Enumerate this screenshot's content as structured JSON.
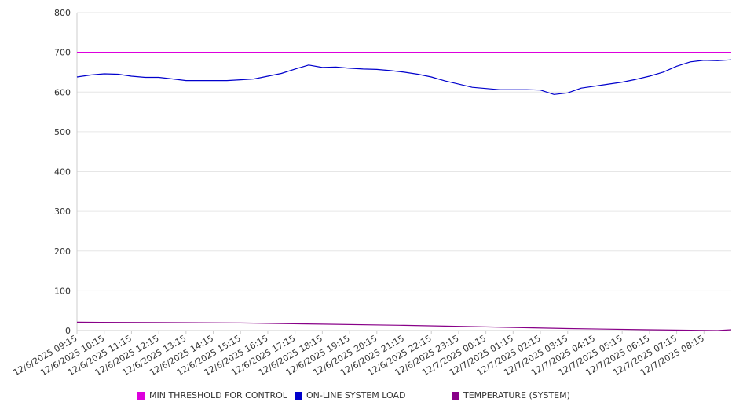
{
  "chart_data": {
    "type": "line",
    "title": "",
    "xlabel": "",
    "ylabel": "",
    "ylim": [
      0,
      800
    ],
    "y_ticks": [
      0,
      100,
      200,
      300,
      400,
      500,
      600,
      700,
      800
    ],
    "x_tick_labels": [
      "12/6/2025 09:15",
      "12/6/2025 10:15",
      "12/6/2025 11:15",
      "12/6/2025 12:15",
      "12/6/2025 13:15",
      "12/6/2025 14:15",
      "12/6/2025 15:15",
      "12/6/2025 16:15",
      "12/6/2025 17:15",
      "12/6/2025 18:15",
      "12/6/2025 19:15",
      "12/6/2025 20:15",
      "12/6/2025 21:15",
      "12/6/2025 22:15",
      "12/6/2025 23:15",
      "12/7/2025 00:15",
      "12/7/2025 01:15",
      "12/7/2025 02:15",
      "12/7/2025 03:15",
      "12/7/2025 04:15",
      "12/7/2025 05:15",
      "12/7/2025 06:15",
      "12/7/2025 07:15",
      "12/7/2025 08:15"
    ],
    "grid": "horizontal",
    "legend_position": "bottom",
    "series": [
      {
        "name": "MIN THRESHOLD FOR CONTROL",
        "color": "#dd00dd",
        "x": [
          "12/6/2025 09:15",
          "12/6/2025 10:15",
          "12/6/2025 11:15",
          "12/6/2025 12:15",
          "12/6/2025 13:15",
          "12/6/2025 14:15",
          "12/6/2025 15:15",
          "12/6/2025 16:15",
          "12/6/2025 17:15",
          "12/6/2025 18:15",
          "12/6/2025 19:15",
          "12/6/2025 20:15",
          "12/6/2025 21:15",
          "12/6/2025 22:15",
          "12/6/2025 23:15",
          "12/7/2025 00:15",
          "12/7/2025 01:15",
          "12/7/2025 02:15",
          "12/7/2025 03:15",
          "12/7/2025 04:15",
          "12/7/2025 05:15",
          "12/7/2025 06:15",
          "12/7/2025 07:15",
          "12/7/2025 08:15",
          "12/7/2025 09:15"
        ],
        "values": [
          700,
          700,
          700,
          700,
          700,
          700,
          700,
          700,
          700,
          700,
          700,
          700,
          700,
          700,
          700,
          700,
          700,
          700,
          700,
          700,
          700,
          700,
          700,
          700,
          700
        ]
      },
      {
        "name": "ON-LINE SYSTEM LOAD",
        "color": "#0000cc",
        "x": [
          "12/6/2025 09:15",
          "12/6/2025 09:45",
          "12/6/2025 10:15",
          "12/6/2025 10:45",
          "12/6/2025 11:15",
          "12/6/2025 11:45",
          "12/6/2025 12:15",
          "12/6/2025 12:45",
          "12/6/2025 13:15",
          "12/6/2025 13:45",
          "12/6/2025 14:15",
          "12/6/2025 14:45",
          "12/6/2025 15:15",
          "12/6/2025 15:45",
          "12/6/2025 16:15",
          "12/6/2025 16:45",
          "12/6/2025 17:15",
          "12/6/2025 17:45",
          "12/6/2025 18:15",
          "12/6/2025 18:45",
          "12/6/2025 19:15",
          "12/6/2025 19:45",
          "12/6/2025 20:15",
          "12/6/2025 20:45",
          "12/6/2025 21:15",
          "12/6/2025 21:45",
          "12/6/2025 22:15",
          "12/6/2025 22:45",
          "12/6/2025 23:15",
          "12/6/2025 23:45",
          "12/7/2025 00:15",
          "12/7/2025 00:45",
          "12/7/2025 01:15",
          "12/7/2025 01:45",
          "12/7/2025 02:15",
          "12/7/2025 02:45",
          "12/7/2025 03:15",
          "12/7/2025 03:45",
          "12/7/2025 04:15",
          "12/7/2025 04:45",
          "12/7/2025 05:15",
          "12/7/2025 05:45",
          "12/7/2025 06:15",
          "12/7/2025 06:45",
          "12/7/2025 07:15",
          "12/7/2025 07:45",
          "12/7/2025 08:15",
          "12/7/2025 08:45",
          "12/7/2025 09:15"
        ],
        "values": [
          638,
          643,
          646,
          645,
          640,
          637,
          637,
          633,
          629,
          629,
          629,
          629,
          631,
          633,
          640,
          647,
          658,
          668,
          662,
          663,
          660,
          658,
          657,
          654,
          650,
          645,
          638,
          628,
          620,
          612,
          609,
          606,
          606,
          606,
          605,
          594,
          598,
          610,
          615,
          620,
          625,
          632,
          640,
          650,
          665,
          676,
          680,
          679,
          681
        ]
      },
      {
        "name": "TEMPERATURE (SYSTEM)",
        "color": "#880088",
        "x": [
          "12/6/2025 09:15",
          "12/6/2025 12:15",
          "12/6/2025 15:15",
          "12/6/2025 18:15",
          "12/6/2025 21:15",
          "12/7/2025 00:15",
          "12/7/2025 03:15",
          "12/7/2025 06:15",
          "12/7/2025 08:45",
          "12/7/2025 09:15"
        ],
        "values": [
          21,
          20,
          19,
          16,
          13,
          9,
          5,
          2,
          0,
          2
        ]
      }
    ]
  }
}
